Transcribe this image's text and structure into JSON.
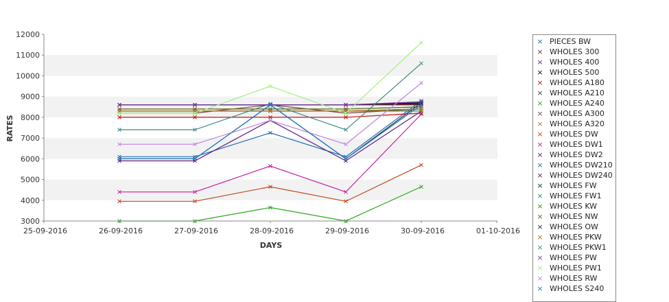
{
  "chart_data": {
    "type": "line",
    "xlabel": "DAYS",
    "ylabel": "RATES",
    "x_ticks": [
      "25-09-2016",
      "26-09-2016",
      "27-09-2016",
      "28-09-2016",
      "29-09-2016",
      "30-09-2016",
      "01-10-2016"
    ],
    "xlim": [
      "25-09-2016",
      "01-10-2016"
    ],
    "x": [
      "26-09-2016",
      "27-09-2016",
      "28-09-2016",
      "29-09-2016",
      "30-09-2016"
    ],
    "ylim": [
      3000,
      12000
    ],
    "y_ticks": [
      3000,
      4000,
      5000,
      6000,
      7000,
      8000,
      9000,
      10000,
      11000,
      12000
    ],
    "grid": "alternating horizontal bands",
    "legend_position": "right",
    "series": [
      {
        "name": "PIECES BW",
        "color": "#1f6fb4",
        "values": [
          6100,
          6100,
          7250,
          6100,
          8800
        ]
      },
      {
        "name": "WHOLES 300",
        "color": "#7b1f4f",
        "values": [
          8600,
          8600,
          8600,
          8600,
          8700
        ]
      },
      {
        "name": "WHOLES 400",
        "color": "#6a1fa0",
        "values": [
          8600,
          8600,
          8600,
          8600,
          8700
        ]
      },
      {
        "name": "WHOLES 500",
        "color": "#111111",
        "values": [
          8600,
          8600,
          8600,
          8600,
          8650
        ]
      },
      {
        "name": "WHOLES A180",
        "color": "#d01010",
        "values": [
          8000,
          8000,
          8000,
          8000,
          8200
        ]
      },
      {
        "name": "WHOLES A210",
        "color": "#444444",
        "values": [
          8300,
          8300,
          8300,
          8300,
          8400
        ]
      },
      {
        "name": "WHOLES A240",
        "color": "#2aa81a",
        "values": [
          3000,
          3000,
          3650,
          3000,
          4650
        ]
      },
      {
        "name": "WHOLES A300",
        "color": "#7a4a3a",
        "values": [
          8200,
          8200,
          8600,
          8200,
          8400
        ]
      },
      {
        "name": "WHOLES A320",
        "color": "#c06a30",
        "values": [
          8400,
          8400,
          8400,
          8400,
          8500
        ]
      },
      {
        "name": "WHOLES DW",
        "color": "#c0461a",
        "values": [
          3950,
          3950,
          4650,
          3950,
          5700
        ]
      },
      {
        "name": "WHOLES DW1",
        "color": "#c020a0",
        "values": [
          4400,
          4400,
          5650,
          4400,
          8150
        ]
      },
      {
        "name": "WHOLES DW2",
        "color": "#5a1a80",
        "values": [
          5900,
          5900,
          7850,
          5900,
          8300
        ]
      },
      {
        "name": "WHOLES DW210",
        "color": "#1a7a8a",
        "values": [
          8300,
          8300,
          8300,
          8300,
          8400
        ]
      },
      {
        "name": "WHOLES DW240",
        "color": "#7a1a3a",
        "values": [
          8600,
          8600,
          8600,
          8600,
          8600
        ]
      },
      {
        "name": "WHOLES FW",
        "color": "#0a3a3a",
        "values": [
          8600,
          8600,
          8600,
          8600,
          8700
        ]
      },
      {
        "name": "WHOLES FW1",
        "color": "#2a8a6a",
        "values": [
          8300,
          8300,
          8300,
          8300,
          8400
        ]
      },
      {
        "name": "WHOLES KW",
        "color": "#3a8a1a",
        "values": [
          8300,
          8300,
          8300,
          8300,
          8300
        ]
      },
      {
        "name": "WHOLES NW",
        "color": "#5a6a2a",
        "values": [
          8400,
          8400,
          8400,
          8400,
          8500
        ]
      },
      {
        "name": "WHOLES OW",
        "color": "#2a2a4a",
        "values": [
          6000,
          6000,
          8600,
          6000,
          8700
        ]
      },
      {
        "name": "WHOLES PKW",
        "color": "#c06a20",
        "values": [
          8300,
          8300,
          8300,
          8300,
          8400
        ]
      },
      {
        "name": "WHOLES PKW1",
        "color": "#3a8a80",
        "values": [
          7400,
          7400,
          8650,
          7400,
          10600
        ]
      },
      {
        "name": "WHOLES PW",
        "color": "#7a3aa0",
        "values": [
          8600,
          8600,
          8600,
          8600,
          8750
        ]
      },
      {
        "name": "WHOLES PW1",
        "color": "#a0f080",
        "values": [
          8200,
          8200,
          9500,
          8200,
          11600
        ]
      },
      {
        "name": "WHOLES RW",
        "color": "#c080e0",
        "values": [
          6700,
          6700,
          7850,
          6700,
          9650
        ]
      },
      {
        "name": "WHOLES S240",
        "color": "#1a7ac0",
        "values": [
          6000,
          6000,
          8600,
          6000,
          8600
        ]
      }
    ]
  }
}
